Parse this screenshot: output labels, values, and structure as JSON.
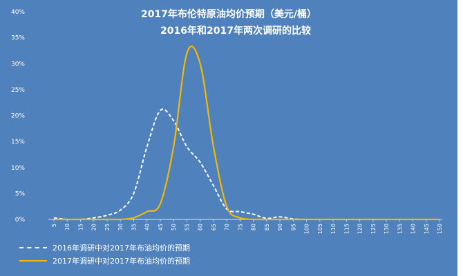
{
  "chart_data": {
    "type": "line",
    "title": "2017年布伦特原油均价预期（美元/桶）",
    "subtitle": "2016年和2017年两次调研的比较",
    "xlabel": "",
    "ylabel": "",
    "x": [
      5,
      10,
      15,
      20,
      25,
      30,
      35,
      40,
      45,
      50,
      55,
      60,
      65,
      70,
      75,
      80,
      85,
      90,
      95,
      100,
      105,
      110,
      115,
      120,
      125,
      130,
      135,
      140,
      145,
      150
    ],
    "ylim": [
      0,
      40
    ],
    "yticks": [
      "0%",
      "5%",
      "10%",
      "15%",
      "20%",
      "25%",
      "30%",
      "35%",
      "40%"
    ],
    "grid": false,
    "legend_position": "bottom-left",
    "series": [
      {
        "name": "2016年调研中对2017年布油均价的预期",
        "style": "dashed",
        "color": "#ffffff",
        "values": [
          0.3,
          0,
          0,
          0.3,
          0.8,
          1.8,
          5,
          14,
          21,
          19,
          14,
          11,
          6.5,
          2,
          1.5,
          1,
          0.2,
          0.5,
          0.1,
          0,
          0,
          0,
          0,
          0,
          0,
          0,
          0,
          0,
          0,
          0
        ]
      },
      {
        "name": "2017年调研中对2017年布油均价的预期",
        "style": "solid",
        "color": "#f5b800",
        "values": [
          0,
          0,
          0,
          0,
          0,
          0,
          0.3,
          1.5,
          3,
          14,
          32,
          30,
          14,
          2.5,
          0.3,
          0,
          0,
          0,
          0,
          0,
          0,
          0,
          0,
          0,
          0,
          0,
          0,
          0,
          0,
          0
        ]
      }
    ]
  },
  "colors": {
    "panel": "#4f81bd",
    "text": "#ffffff",
    "series_2017": "#f5b800"
  }
}
